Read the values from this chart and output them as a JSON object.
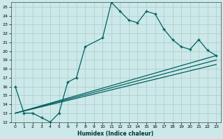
{
  "title": "",
  "xlabel": "Humidex (Indice chaleur)",
  "bg_color": "#cce8e8",
  "grid_color": "#aacccc",
  "line_color": "#006060",
  "xlim": [
    -0.5,
    23.5
  ],
  "ylim": [
    12,
    25.5
  ],
  "xticks": [
    0,
    1,
    2,
    3,
    4,
    5,
    6,
    7,
    8,
    9,
    10,
    11,
    12,
    13,
    14,
    15,
    16,
    17,
    18,
    19,
    20,
    21,
    22,
    23
  ],
  "yticks": [
    12,
    13,
    14,
    15,
    16,
    17,
    18,
    19,
    20,
    21,
    22,
    23,
    24,
    25
  ],
  "line1_x": [
    0,
    1,
    2,
    3,
    4,
    5,
    6,
    7,
    8,
    10,
    11,
    12,
    13,
    14,
    15,
    16,
    17,
    18,
    19,
    20,
    21,
    22,
    23
  ],
  "line1_y": [
    16,
    13,
    13,
    12.5,
    12,
    13,
    16.5,
    17,
    20.5,
    21.5,
    25.5,
    24.5,
    23.5,
    23.2,
    24.5,
    24.2,
    22.5,
    21.3,
    20.5,
    20.2,
    21.3,
    20.1,
    19.5
  ],
  "line2_x": [
    0,
    23
  ],
  "line2_y": [
    13.0,
    19.5
  ],
  "line3_x": [
    0,
    23
  ],
  "line3_y": [
    13.0,
    19.0
  ],
  "line4_x": [
    0,
    23
  ],
  "line4_y": [
    13.0,
    18.5
  ]
}
